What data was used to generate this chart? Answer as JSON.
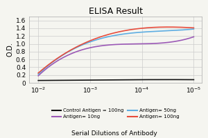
{
  "title": "ELISA Result",
  "ylabel": "O.D.",
  "xlabel": "Serial Dilutions of Antibody",
  "x_ticks": [
    0.01,
    0.001,
    0.0001,
    1e-05
  ],
  "ylim": [
    0,
    1.7
  ],
  "yticks": [
    0,
    0.2,
    0.4,
    0.6,
    0.8,
    1.0,
    1.2,
    1.4,
    1.6
  ],
  "lines": [
    {
      "label": "Control Antigen = 100ng",
      "color": "#111111",
      "y": [
        0.08,
        0.08,
        0.07,
        0.06
      ]
    },
    {
      "label": "Antigen= 10ng",
      "color": "#9B59B6",
      "y": [
        1.18,
        1.0,
        0.9,
        0.18
      ]
    },
    {
      "label": "Antigen= 50ng",
      "color": "#5DADE2",
      "y": [
        1.38,
        1.3,
        1.05,
        0.22
      ]
    },
    {
      "label": "Antigen= 100ng",
      "color": "#E74C3C",
      "y": [
        1.41,
        1.4,
        1.08,
        0.25
      ]
    }
  ],
  "background_color": "#f5f5f0",
  "grid_color": "#cccccc"
}
